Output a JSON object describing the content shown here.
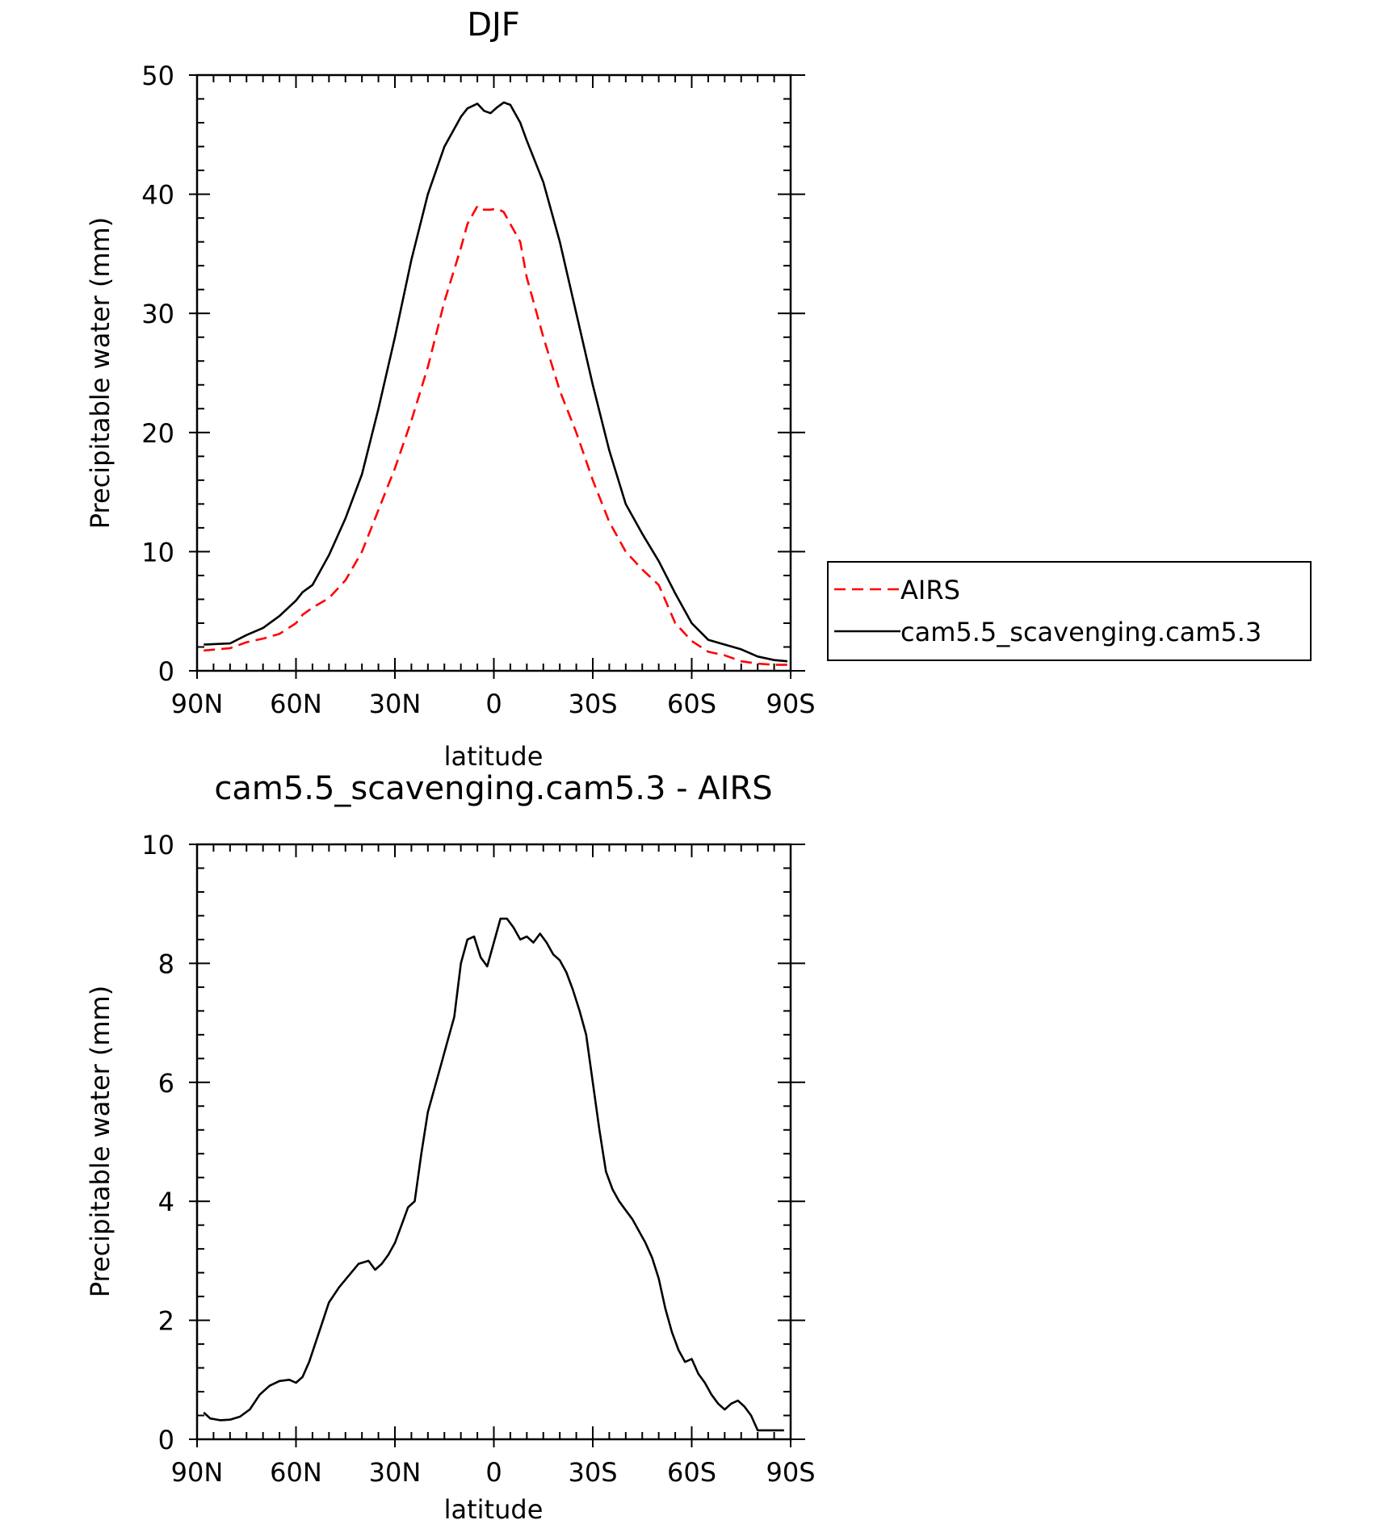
{
  "chart_data": [
    {
      "type": "line",
      "title": "DJF",
      "xlabel": "latitude",
      "ylabel": "Precipitable water (mm)",
      "xlim": [
        -90,
        90
      ],
      "ylim": [
        0,
        50
      ],
      "xticks": [
        -90,
        -60,
        -30,
        0,
        30,
        60,
        90
      ],
      "xtick_labels": [
        "90N",
        "60N",
        "30N",
        "0",
        "30S",
        "60S",
        "90S"
      ],
      "yticks": [
        0,
        10,
        20,
        30,
        40,
        50
      ],
      "ytick_labels": [
        "0",
        "10",
        "20",
        "30",
        "40",
        "50"
      ],
      "legend_position": "right",
      "series": [
        {
          "name": "AIRS",
          "color": "#ff0000",
          "dash": "dashed",
          "x": [
            -88,
            -80,
            -75,
            -70,
            -65,
            -60,
            -58,
            -55,
            -50,
            -45,
            -40,
            -35,
            -30,
            -25,
            -20,
            -15,
            -10,
            -8,
            -5,
            -3,
            -1,
            1,
            3,
            5,
            8,
            10,
            15,
            20,
            25,
            30,
            35,
            40,
            45,
            50,
            55,
            60,
            65,
            70,
            75,
            80,
            85,
            89
          ],
          "values": [
            1.7,
            1.9,
            2.4,
            2.7,
            3.1,
            4.0,
            4.7,
            5.3,
            6.1,
            7.6,
            10.0,
            13.5,
            17.0,
            21.0,
            25.5,
            31.0,
            35.5,
            37.5,
            39.0,
            38.7,
            38.7,
            38.8,
            38.5,
            37.5,
            36.0,
            33.0,
            28.0,
            23.5,
            20.0,
            16.0,
            12.5,
            10.0,
            8.5,
            7.2,
            4.0,
            2.5,
            1.6,
            1.3,
            0.8,
            0.6,
            0.5,
            0.5
          ]
        },
        {
          "name": "cam5.5_scavenging.cam5.3",
          "color": "#000000",
          "dash": "solid",
          "x": [
            -88,
            -80,
            -75,
            -70,
            -65,
            -60,
            -58,
            -55,
            -50,
            -45,
            -40,
            -35,
            -30,
            -25,
            -20,
            -15,
            -10,
            -8,
            -5,
            -3,
            -1,
            1,
            3,
            5,
            8,
            10,
            15,
            20,
            25,
            30,
            35,
            40,
            45,
            50,
            55,
            60,
            65,
            70,
            75,
            80,
            85,
            89
          ],
          "values": [
            2.2,
            2.3,
            3.0,
            3.6,
            4.6,
            5.9,
            6.6,
            7.2,
            9.7,
            12.8,
            16.5,
            22.0,
            28.0,
            34.5,
            40.0,
            44.0,
            46.5,
            47.2,
            47.6,
            47.0,
            46.8,
            47.3,
            47.7,
            47.5,
            46.0,
            44.5,
            41.0,
            36.0,
            30.0,
            24.0,
            18.5,
            14.0,
            11.5,
            9.2,
            6.5,
            4.0,
            2.6,
            2.2,
            1.8,
            1.2,
            0.9,
            0.8
          ]
        }
      ]
    },
    {
      "type": "line",
      "title": "cam5.5_scavenging.cam5.3 - AIRS",
      "xlabel": "latitude",
      "ylabel": "Precipitable water (mm)",
      "xlim": [
        -90,
        90
      ],
      "ylim": [
        0,
        10
      ],
      "xticks": [
        -90,
        -60,
        -30,
        0,
        30,
        60,
        90
      ],
      "xtick_labels": [
        "90N",
        "60N",
        "30N",
        "0",
        "30S",
        "60S",
        "90S"
      ],
      "yticks": [
        0,
        2,
        4,
        6,
        8,
        10
      ],
      "ytick_labels": [
        "0",
        "2",
        "4",
        "6",
        "8",
        "10"
      ],
      "series": [
        {
          "name": "cam5.5_scavenging.cam5.3 - AIRS",
          "color": "#000000",
          "dash": "solid",
          "x": [
            -88,
            -86,
            -83,
            -80,
            -77,
            -74,
            -71,
            -68,
            -65,
            -62,
            -60,
            -58,
            -56,
            -53,
            -50,
            -47,
            -44,
            -41,
            -38,
            -36,
            -34,
            -32,
            -30,
            -28,
            -26,
            -24,
            -22,
            -20,
            -18,
            -16,
            -14,
            -12,
            -10,
            -8,
            -6,
            -4,
            -2,
            0,
            2,
            4,
            6,
            8,
            10,
            12,
            14,
            16,
            18,
            20,
            22,
            24,
            26,
            28,
            30,
            32,
            34,
            36,
            38,
            40,
            42,
            44,
            46,
            48,
            50,
            52,
            54,
            56,
            58,
            60,
            62,
            64,
            66,
            68,
            70,
            72,
            74,
            76,
            78,
            80,
            82,
            84,
            86,
            88
          ],
          "values": [
            0.45,
            0.35,
            0.32,
            0.33,
            0.38,
            0.5,
            0.75,
            0.9,
            0.98,
            1.0,
            0.95,
            1.05,
            1.3,
            1.8,
            2.3,
            2.55,
            2.75,
            2.95,
            3.0,
            2.85,
            2.95,
            3.1,
            3.3,
            3.6,
            3.9,
            4.0,
            4.8,
            5.5,
            5.9,
            6.3,
            6.7,
            7.1,
            8.0,
            8.4,
            8.45,
            8.1,
            7.95,
            8.35,
            8.75,
            8.75,
            8.6,
            8.4,
            8.45,
            8.35,
            8.5,
            8.35,
            8.15,
            8.05,
            7.85,
            7.55,
            7.2,
            6.8,
            6.0,
            5.2,
            4.5,
            4.2,
            4.0,
            3.85,
            3.7,
            3.5,
            3.3,
            3.05,
            2.7,
            2.2,
            1.8,
            1.5,
            1.3,
            1.35,
            1.1,
            0.95,
            0.75,
            0.6,
            0.5,
            0.6,
            0.65,
            0.55,
            0.4,
            0.15,
            0.15,
            0.15,
            0.15,
            0.15
          ]
        }
      ]
    }
  ]
}
